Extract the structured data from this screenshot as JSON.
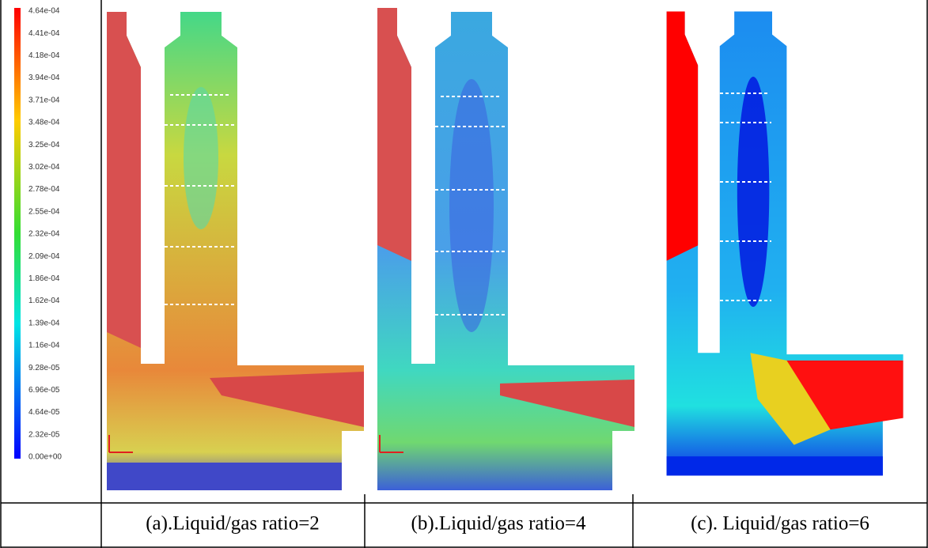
{
  "legend": {
    "labels": [
      "4.64e-04",
      "4.41e-04",
      "4.18e-04",
      "3.94e-04",
      "3.71e-04",
      "3.48e-04",
      "3.25e-04",
      "3.02e-04",
      "2.78e-04",
      "2.55e-04",
      "2.32e-04",
      "2.09e-04",
      "1.86e-04",
      "1.62e-04",
      "1.39e-04",
      "1.16e-04",
      "9.28e-05",
      "6.96e-05",
      "4.64e-05",
      "2.32e-05",
      "0.00e+00"
    ]
  },
  "captions": [
    "(a).Liquid/gas ratio=2",
    "(b).Liquid/gas ratio=4",
    "(c). Liquid/gas ratio=6"
  ]
}
